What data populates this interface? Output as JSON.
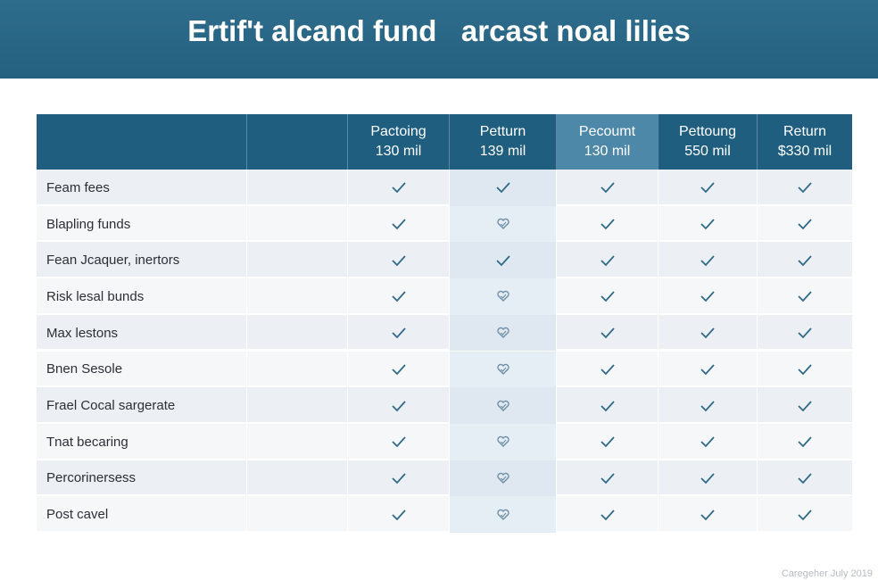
{
  "header": {
    "title": "Ertif't alcand fund   arcast noal lilies"
  },
  "table": {
    "columns": [
      {
        "name": "Pactoing",
        "amount": "130 mil"
      },
      {
        "name": "Petturn",
        "amount": "139 mil"
      },
      {
        "name": "Pecoumt",
        "amount": "130 mil"
      },
      {
        "name": "Pettoung",
        "amount": "550 mil"
      },
      {
        "name": "Return",
        "amount": "$330 mil"
      }
    ],
    "rows": [
      "Feam fees",
      "Blapling funds",
      "Fean Jcaquer, inertors",
      "Risk lesal bunds",
      "Max lestons",
      "Bnen Sesole",
      "Frael Cocal sargerate",
      "Tnat becaring",
      "Percorinersess",
      "Post cavel"
    ]
  },
  "footer": "Caregeher July 2019"
}
